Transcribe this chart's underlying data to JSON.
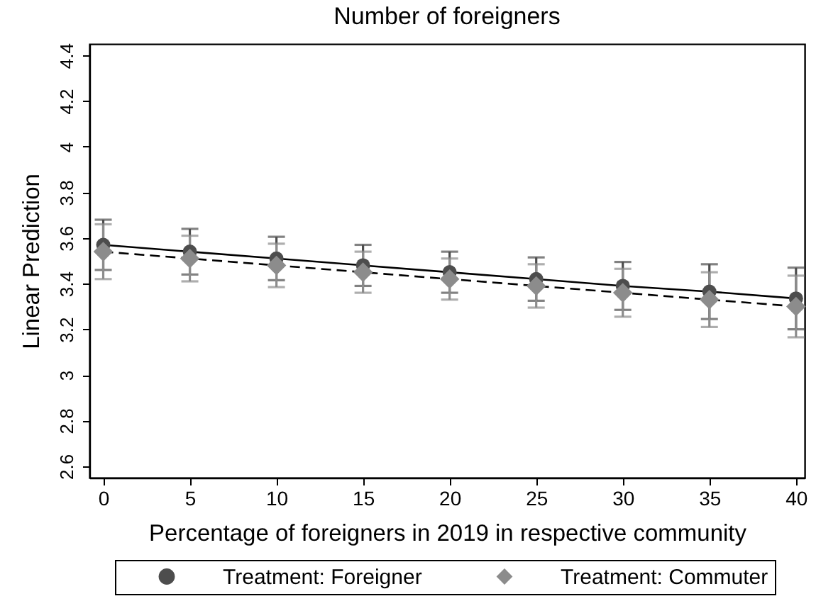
{
  "chart_data": {
    "type": "line",
    "title": "Number of foreigners",
    "xlabel": "Percentage of foreigners in 2019 in respective community",
    "ylabel": "Linear Prediction",
    "x": [
      0,
      5,
      10,
      15,
      20,
      25,
      30,
      35,
      40
    ],
    "xlim": [
      -0.8,
      40.5
    ],
    "xticks": [
      0,
      5,
      10,
      15,
      20,
      25,
      30,
      35,
      40
    ],
    "ylim": [
      2.55,
      4.45
    ],
    "yticks": [
      2.6,
      2.8,
      3,
      3.2,
      3.4,
      3.6,
      3.8,
      4,
      4.2,
      4.4
    ],
    "grid": false,
    "legend": "bottom",
    "series": [
      {
        "name": "Treatment: Foreigner",
        "color": "#4d4d4d",
        "marker": "circle",
        "line_style": "solid",
        "values": [
          3.57,
          3.54,
          3.51,
          3.48,
          3.45,
          3.42,
          3.39,
          3.365,
          3.335
        ],
        "errors": [
          0.11,
          0.1,
          0.095,
          0.09,
          0.09,
          0.095,
          0.105,
          0.12,
          0.135
        ]
      },
      {
        "name": "Treatment: Commuter",
        "color": "#8c8c8c",
        "marker": "diamond",
        "line_style": "dashed",
        "values": [
          3.54,
          3.51,
          3.48,
          3.45,
          3.42,
          3.39,
          3.36,
          3.33,
          3.3
        ],
        "errors": [
          0.12,
          0.1,
          0.095,
          0.09,
          0.09,
          0.095,
          0.105,
          0.12,
          0.135
        ]
      }
    ]
  }
}
